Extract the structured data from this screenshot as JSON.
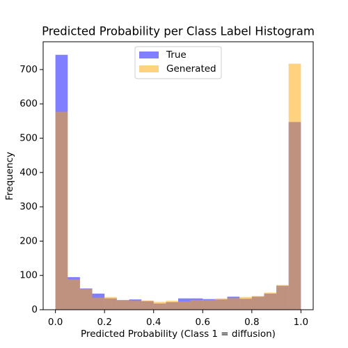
{
  "chart_data": {
    "type": "histogram",
    "title": "Predicted Probability per Class Label Histogram",
    "xlabel": "Predicted Probability (Class 1 = diffusion)",
    "ylabel": "Frequency",
    "bins": [
      0,
      0.05,
      0.1,
      0.15,
      0.2,
      0.25,
      0.3,
      0.35,
      0.4,
      0.45,
      0.5,
      0.55,
      0.6,
      0.65,
      0.7,
      0.75,
      0.8,
      0.85,
      0.9,
      0.95,
      1
    ],
    "series": [
      {
        "name": "True",
        "color": "blue",
        "values": [
          743,
          95,
          62,
          47,
          33,
          28,
          30,
          25,
          18,
          22,
          33,
          33,
          31,
          30,
          38,
          32,
          38,
          47,
          70,
          547
        ]
      },
      {
        "name": "Generated",
        "color": "orange",
        "values": [
          577,
          88,
          60,
          35,
          37,
          28,
          26,
          27,
          23,
          26,
          24,
          28,
          28,
          33,
          34,
          37,
          40,
          50,
          72,
          717
        ]
      }
    ],
    "alpha": 0.5,
    "xlim": [
      -0.05,
      1.05
    ],
    "ylim": [
      0,
      781
    ],
    "xticks": [
      {
        "value": 0,
        "label": "0.0"
      },
      0.2,
      0.4,
      0.6,
      0.8,
      {
        "value": 1,
        "label": "1.0"
      }
    ],
    "yticks": [
      0,
      100,
      200,
      300,
      400,
      500,
      600,
      700
    ],
    "legend": "upper center"
  }
}
